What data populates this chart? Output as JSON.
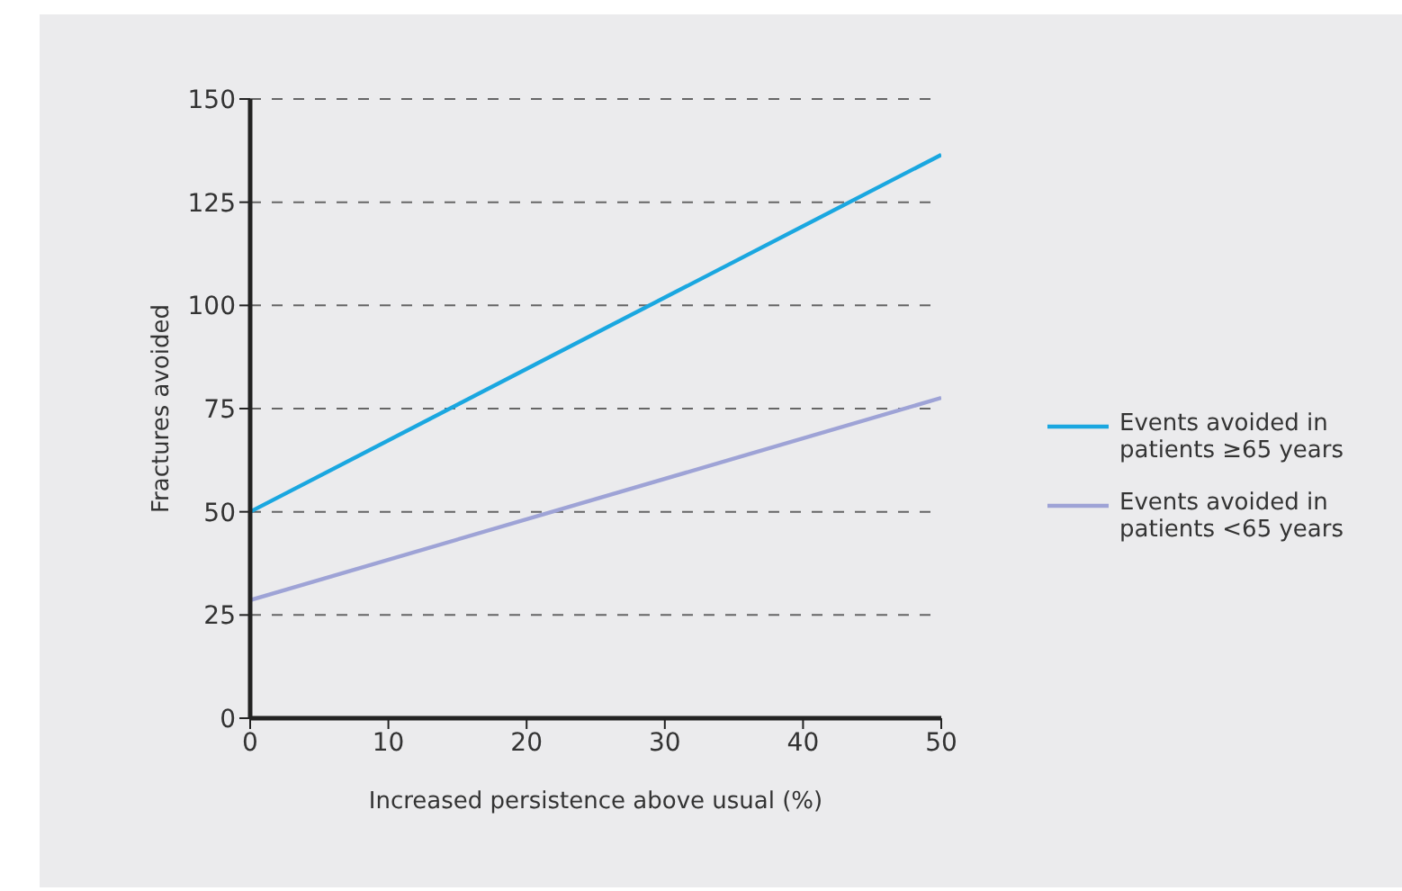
{
  "chart_data": {
    "type": "line",
    "xlabel": "Increased persistence above usual (%)",
    "ylabel": "Fractures avoided",
    "x": [
      0,
      50
    ],
    "series": [
      {
        "name": "Events avoided in patients ≥65 years",
        "color": "#1aa7e0",
        "values": [
          50,
          136.5
        ]
      },
      {
        "name": "Events avoided in patients <65 years",
        "color": "#9ea3d6",
        "values": [
          28.6,
          77.6
        ]
      }
    ],
    "xlim": [
      0,
      50
    ],
    "xticks": [
      0,
      10,
      20,
      30,
      40,
      50
    ],
    "ylim": [
      0,
      150
    ],
    "yticks": [
      0,
      25,
      50,
      75,
      100,
      125,
      150
    ],
    "grid": "y",
    "legend": "right",
    "marker": "none",
    "line_style": "solid"
  }
}
